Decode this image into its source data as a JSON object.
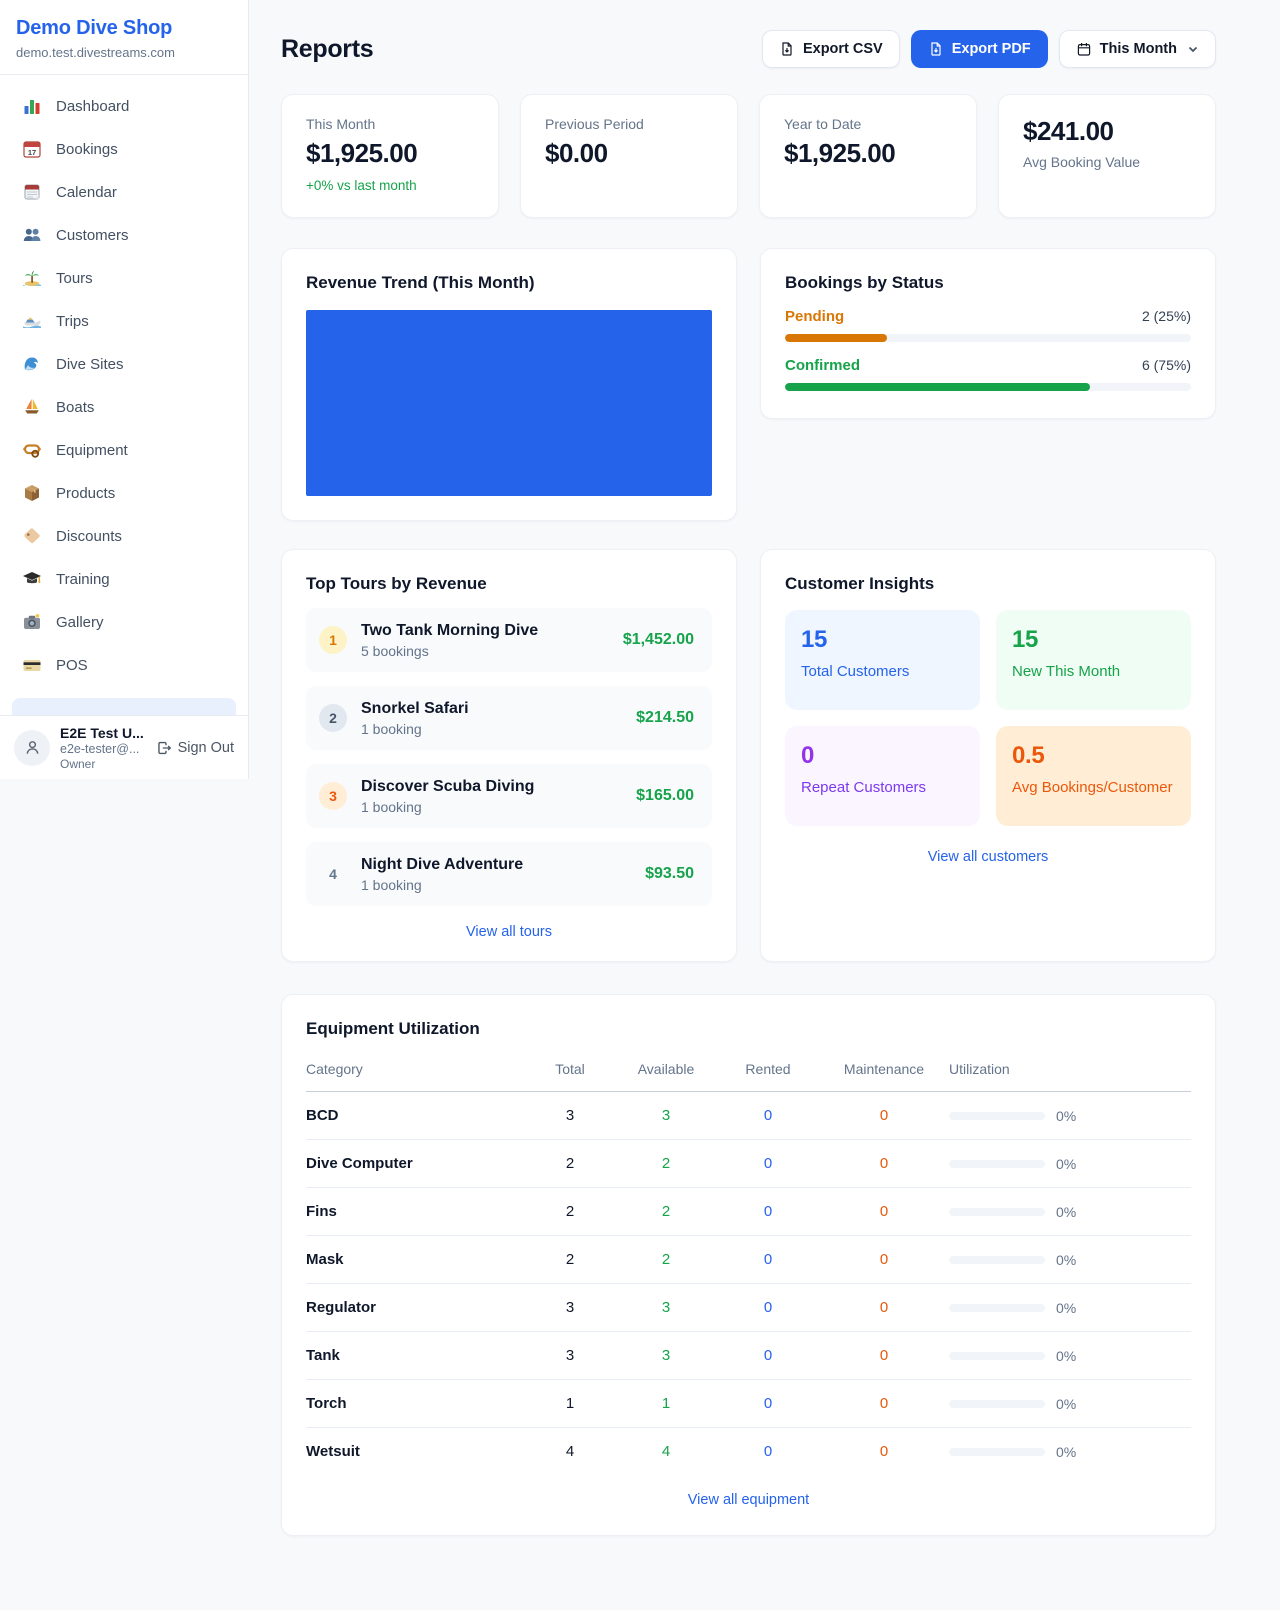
{
  "colors": {
    "accent_blue": "#2563eb",
    "positive_green": "#16a34a",
    "pending_orange": "#d97706",
    "maintenance_orange": "#ea580c",
    "purple": "#9333ea",
    "chart_bar_blue": "#2563eb"
  },
  "sidebar": {
    "brand": {
      "name": "Demo Dive Shop",
      "domain": "demo.test.divestreams.com"
    },
    "nav": [
      {
        "label": "Dashboard"
      },
      {
        "label": "Bookings"
      },
      {
        "label": "Calendar"
      },
      {
        "label": "Customers"
      },
      {
        "label": "Tours"
      },
      {
        "label": "Trips"
      },
      {
        "label": "Dive Sites"
      },
      {
        "label": "Boats"
      },
      {
        "label": "Equipment"
      },
      {
        "label": "Products"
      },
      {
        "label": "Discounts"
      },
      {
        "label": "Training"
      },
      {
        "label": "Gallery"
      },
      {
        "label": "POS"
      }
    ],
    "user": {
      "name": "E2E Test U...",
      "email": "e2e-tester@...",
      "role": "Owner",
      "sign_out_label": "Sign Out"
    }
  },
  "header": {
    "title": "Reports",
    "export_csv_label": "Export CSV",
    "export_pdf_label": "Export PDF",
    "period_label": "This Month"
  },
  "stats": [
    {
      "label": "This Month",
      "value": "$1,925.00",
      "delta": "+0% vs last month"
    },
    {
      "label": "Previous Period",
      "value": "$0.00"
    },
    {
      "label": "Year to Date",
      "value": "$1,925.00"
    },
    {
      "label": "Avg Booking Value",
      "value": "$241.00"
    }
  ],
  "revenue_trend": {
    "title": "Revenue Trend (This Month)"
  },
  "bookings_by_status": {
    "title": "Bookings by Status",
    "rows": [
      {
        "label": "Pending",
        "count": "2 (25%)",
        "pct": 25,
        "color": "#d97706"
      },
      {
        "label": "Confirmed",
        "count": "6 (75%)",
        "pct": 75,
        "color": "#16a34a"
      }
    ]
  },
  "top_tours": {
    "title": "Top Tours by Revenue",
    "items": [
      {
        "rank": "1",
        "name": "Two Tank Morning Dive",
        "bookings": "5 bookings",
        "revenue": "$1,452.00"
      },
      {
        "rank": "2",
        "name": "Snorkel Safari",
        "bookings": "1 booking",
        "revenue": "$214.50"
      },
      {
        "rank": "3",
        "name": "Discover Scuba Diving",
        "bookings": "1 booking",
        "revenue": "$165.00"
      },
      {
        "rank": "4",
        "name": "Night Dive Adventure",
        "bookings": "1 booking",
        "revenue": "$93.50"
      }
    ],
    "link": "View all tours"
  },
  "customer_insights": {
    "title": "Customer Insights",
    "tiles": [
      {
        "value": "15",
        "label": "Total Customers"
      },
      {
        "value": "15",
        "label": "New This Month"
      },
      {
        "value": "0",
        "label": "Repeat Customers"
      },
      {
        "value": "0.5",
        "label": "Avg Bookings/Customer"
      }
    ],
    "link": "View all customers"
  },
  "equipment": {
    "title": "Equipment Utilization",
    "columns": [
      "Category",
      "Total",
      "Available",
      "Rented",
      "Maintenance",
      "Utilization"
    ],
    "rows": [
      {
        "category": "BCD",
        "total": "3",
        "available": "3",
        "rented": "0",
        "maintenance": "0",
        "utilization": "0%",
        "utilization_pct": 0
      },
      {
        "category": "Dive Computer",
        "total": "2",
        "available": "2",
        "rented": "0",
        "maintenance": "0",
        "utilization": "0%",
        "utilization_pct": 0
      },
      {
        "category": "Fins",
        "total": "2",
        "available": "2",
        "rented": "0",
        "maintenance": "0",
        "utilization": "0%",
        "utilization_pct": 0
      },
      {
        "category": "Mask",
        "total": "2",
        "available": "2",
        "rented": "0",
        "maintenance": "0",
        "utilization": "0%",
        "utilization_pct": 0
      },
      {
        "category": "Regulator",
        "total": "3",
        "available": "3",
        "rented": "0",
        "maintenance": "0",
        "utilization": "0%",
        "utilization_pct": 0
      },
      {
        "category": "Tank",
        "total": "3",
        "available": "3",
        "rented": "0",
        "maintenance": "0",
        "utilization": "0%",
        "utilization_pct": 0
      },
      {
        "category": "Torch",
        "total": "1",
        "available": "1",
        "rented": "0",
        "maintenance": "0",
        "utilization": "0%",
        "utilization_pct": 0
      },
      {
        "category": "Wetsuit",
        "total": "4",
        "available": "4",
        "rented": "0",
        "maintenance": "0",
        "utilization": "0%",
        "utilization_pct": 0
      }
    ],
    "link": "View all equipment"
  }
}
